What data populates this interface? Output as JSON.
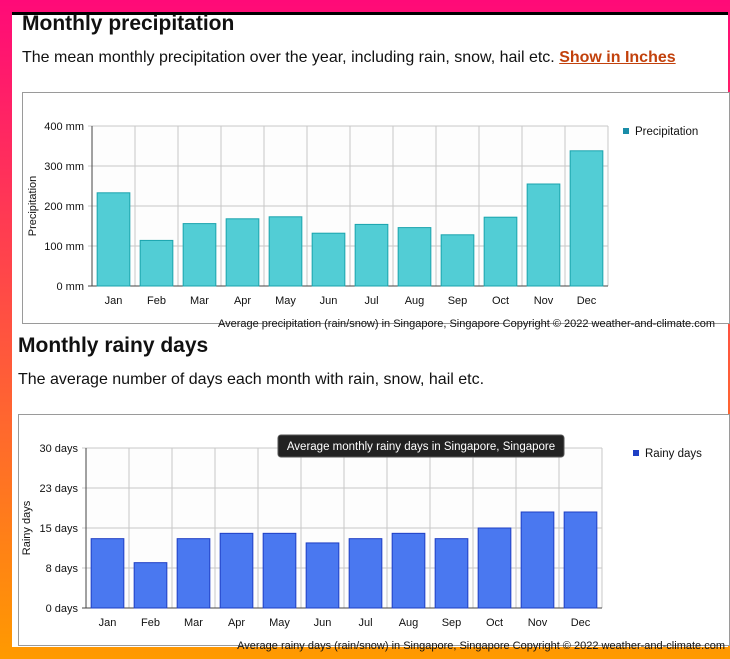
{
  "section1": {
    "title": "Monthly precipitation",
    "description": "The mean monthly precipitation over the year, including rain, snow, hail etc.",
    "link": "Show in Inches"
  },
  "section2": {
    "title": "Monthly rainy days",
    "description": "The average number of days each month with rain, snow, hail etc."
  },
  "tooltip": "Average monthly rainy days in Singapore, Singapore",
  "chart_data": [
    {
      "type": "bar",
      "categories": [
        "Jan",
        "Feb",
        "Mar",
        "Apr",
        "May",
        "Jun",
        "Jul",
        "Aug",
        "Sep",
        "Oct",
        "Nov",
        "Dec"
      ],
      "series": [
        {
          "name": "Precipitation",
          "values": [
            233,
            114,
            156,
            168,
            173,
            132,
            154,
            146,
            128,
            172,
            255,
            338
          ]
        }
      ],
      "ylabel": "Precipitation",
      "ylim": [
        0,
        400
      ],
      "yticks": [
        "0 mm",
        "100 mm",
        "200 mm",
        "300 mm",
        "400 mm"
      ],
      "ytick_values": [
        0,
        100,
        200,
        300,
        400
      ],
      "footer": "Average precipitation (rain/snow) in Singapore, Singapore   Copyright © 2022  weather-and-climate.com",
      "colors": {
        "fill": "#52cdd5",
        "stroke": "#1aa3ad",
        "legend": "#1a8da8"
      },
      "grid": true,
      "legend": "top-right"
    },
    {
      "type": "bar",
      "categories": [
        "Jan",
        "Feb",
        "Mar",
        "Apr",
        "May",
        "Jun",
        "Jul",
        "Aug",
        "Sep",
        "Oct",
        "Nov",
        "Dec"
      ],
      "series": [
        {
          "name": "Rainy days",
          "values": [
            13,
            8.5,
            13,
            14,
            14,
            12.2,
            13,
            14,
            13,
            15,
            18,
            18
          ]
        }
      ],
      "ylabel": "Rainy days",
      "ylim": [
        0,
        30
      ],
      "yticks": [
        "0 days",
        "8 days",
        "15 days",
        "23 days",
        "30 days"
      ],
      "ytick_values": [
        0,
        7.5,
        15,
        22.5,
        30
      ],
      "footer": "Average rainy days (rain/snow) in Singapore, Singapore   Copyright © 2022  weather-and-climate.com",
      "colors": {
        "fill": "#4a78f0",
        "stroke": "#1f3fc4",
        "legend": "#1f3fc4"
      },
      "grid": true,
      "legend": "top-right"
    }
  ]
}
